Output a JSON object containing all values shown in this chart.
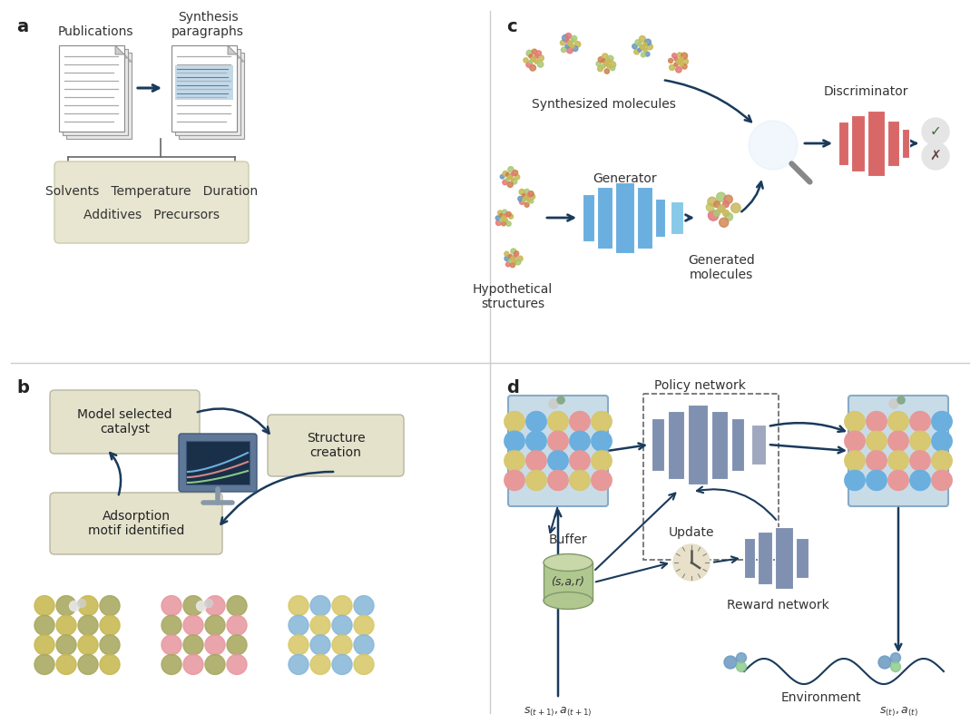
{
  "bg_color": "#ffffff",
  "panel_label_color": "#222222",
  "panel_label_size": 14,
  "arrow_color": "#1a3a5c",
  "panel_a": {
    "label": "a",
    "pub_label": "Publications",
    "syn_label": "Synthesis\nparagraphs",
    "box_items_row1": "Solvents   Temperature   Duration",
    "box_items_row2": "Additives   Precursors"
  },
  "panel_b": {
    "label": "b",
    "box1": "Model selected\ncatalyst",
    "box2": "Structure\ncreation",
    "box3": "Adsorption\nmotif identified"
  },
  "panel_c": {
    "label": "c",
    "label_synth": "Synthesized molecules",
    "label_gen": "Generator",
    "label_hyp": "Hypothetical\nstructures",
    "label_genm": "Generated\nmolecules",
    "label_disc": "Discriminator"
  },
  "panel_d": {
    "label": "d",
    "label_policy": "Policy network",
    "label_buffer": "Buffer",
    "label_update": "Update",
    "label_reward": "Reward network",
    "label_env": "Environment",
    "label_sar": "(s,a,r)",
    "label_st1": "$s_{(t+1)}, a_{(t+1)}$",
    "label_st": "$s_{(t)}, a_{(t)}$"
  }
}
